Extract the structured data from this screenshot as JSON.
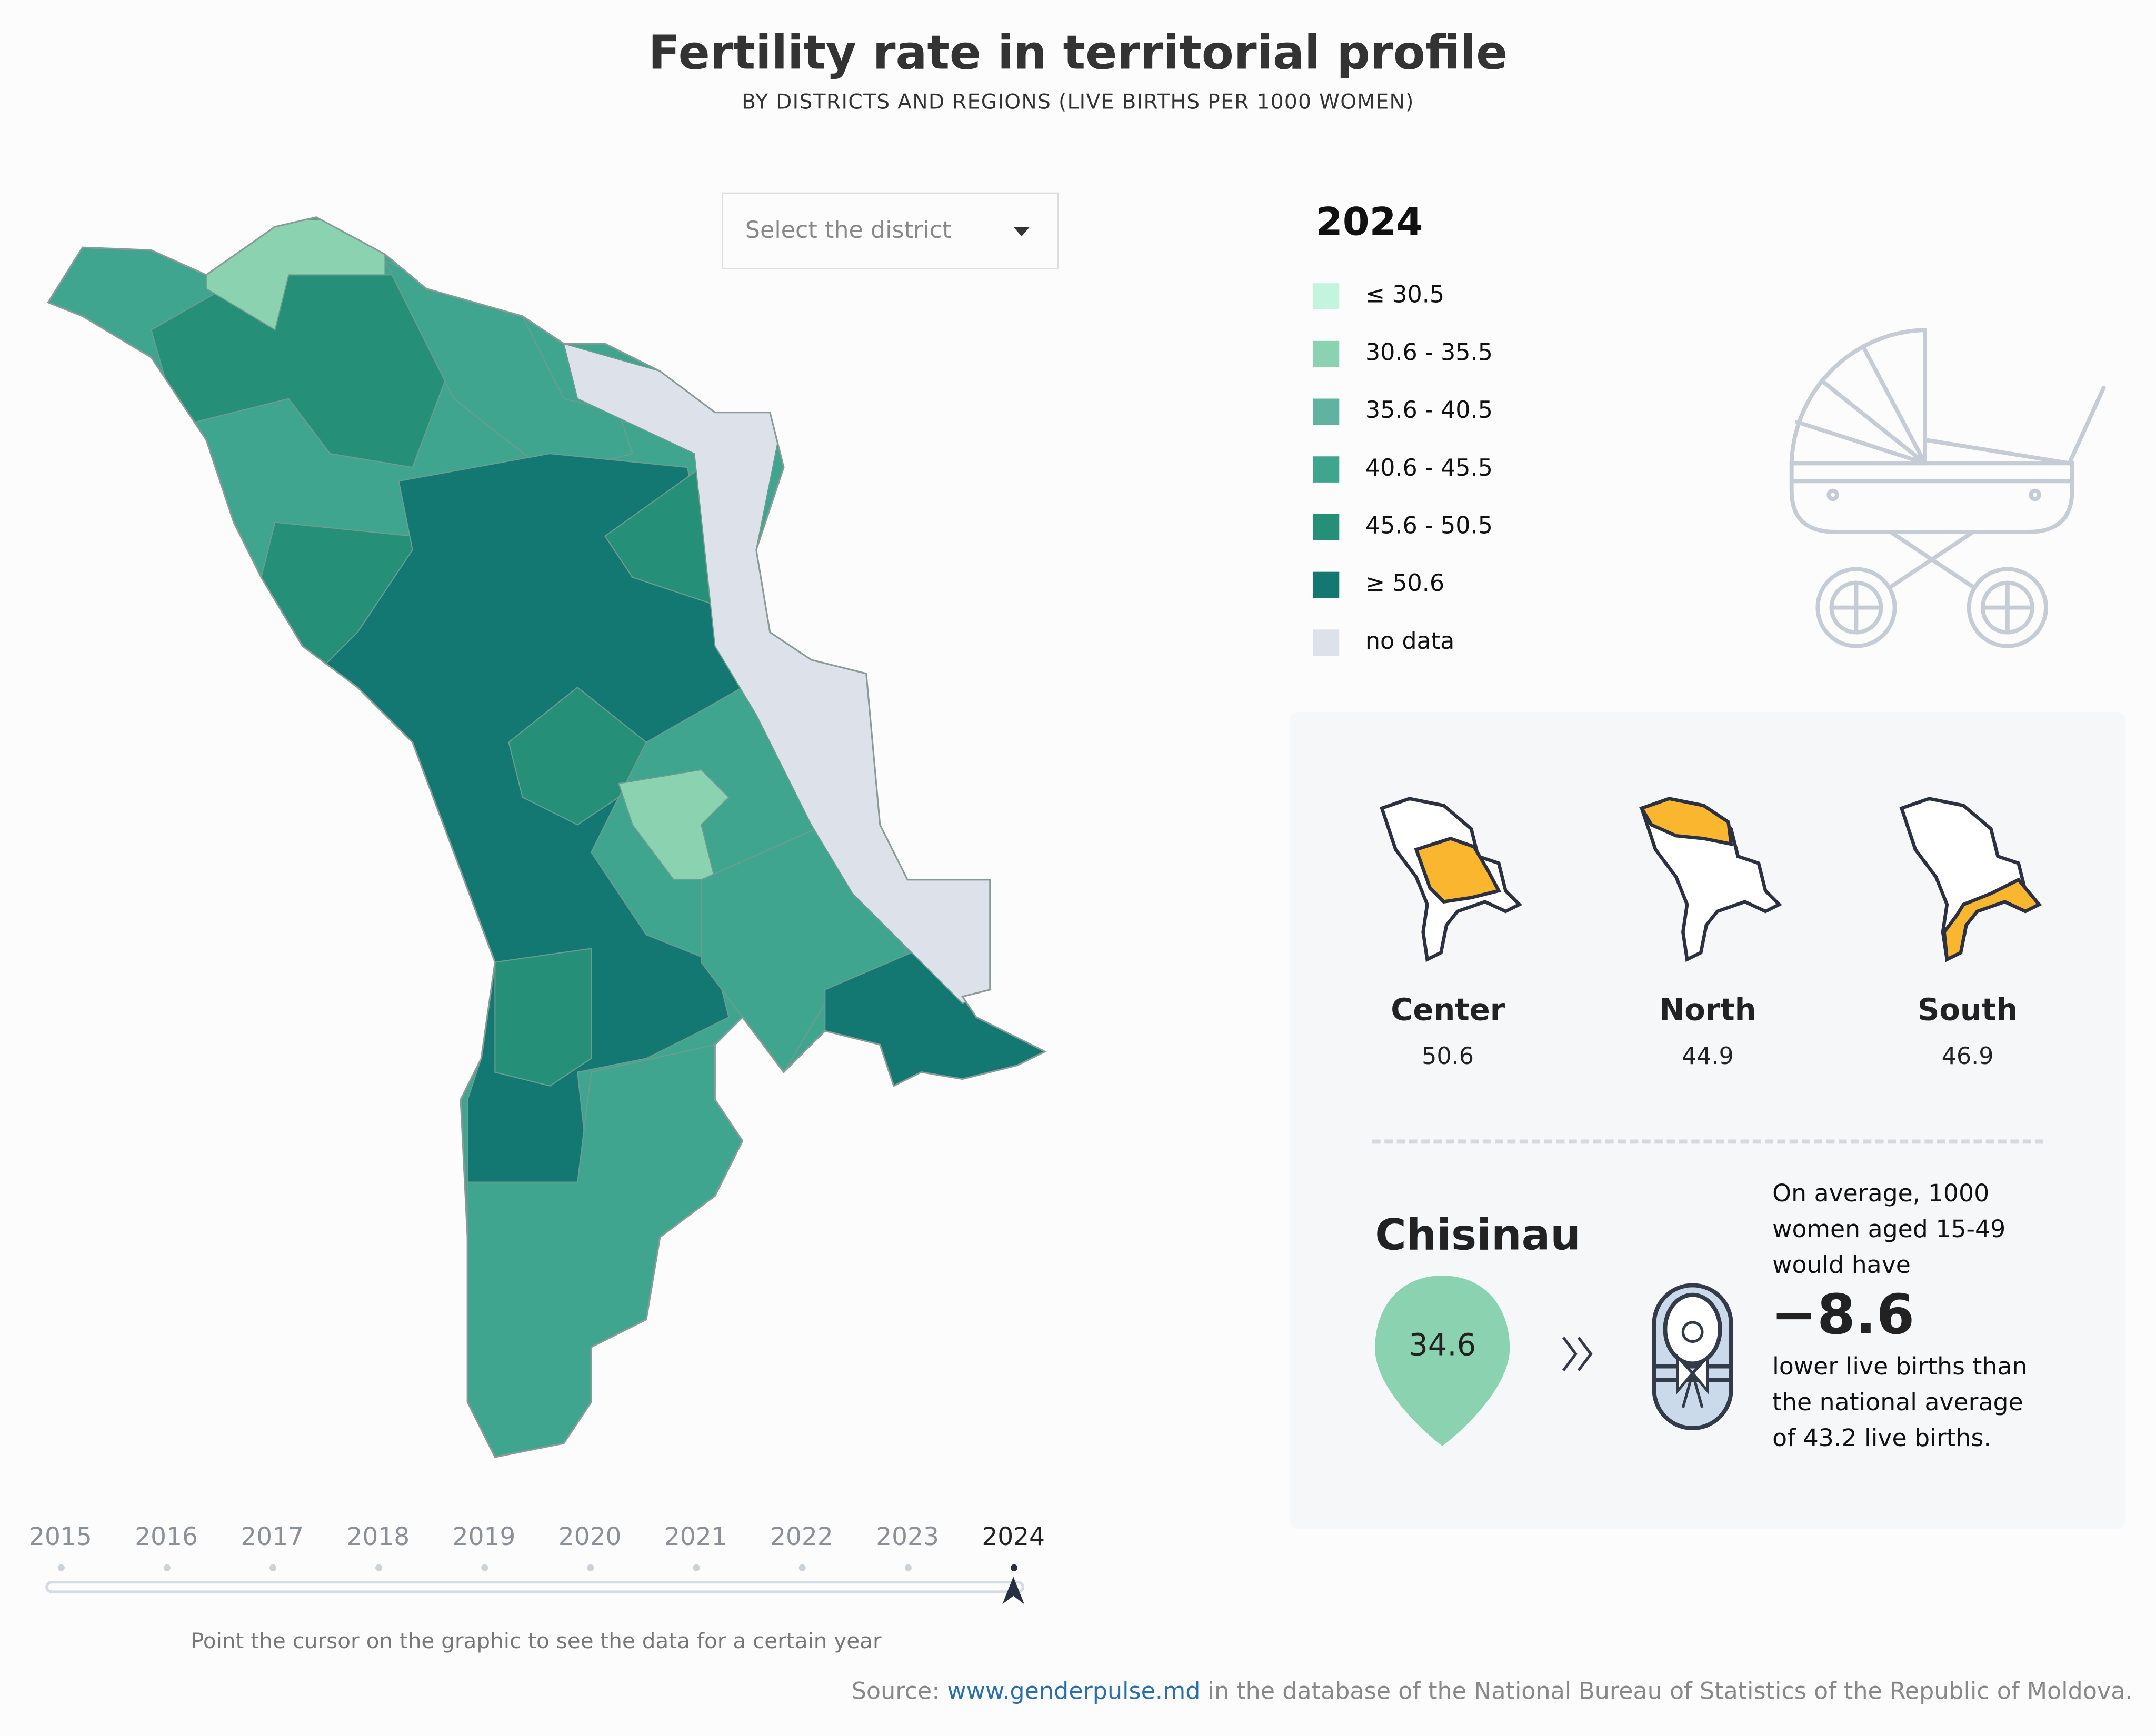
{
  "header": {
    "title": "Fertility rate in territorial profile",
    "subtitle": "BY DISTRICTS AND REGIONS (LIVE BIRTHS PER 1000 WOMEN)"
  },
  "district_select": {
    "placeholder": "Select the district"
  },
  "legend": {
    "year": "2024",
    "items": [
      {
        "label": "≤ 30.5",
        "color": "#c3f5de"
      },
      {
        "label": "30.6 - 35.5",
        "color": "#8bd3b0"
      },
      {
        "label": "35.6 - 40.5",
        "color": "#5fb3a0"
      },
      {
        "label": "40.6 - 45.5",
        "color": "#3fa58e"
      },
      {
        "label": "45.6 - 50.5",
        "color": "#258f78"
      },
      {
        "label": "≥ 50.6",
        "color": "#137872"
      },
      {
        "label": "no data",
        "color": "#dde1ea"
      }
    ]
  },
  "regions": [
    {
      "name": "Center",
      "value": "50.6"
    },
    {
      "name": "North",
      "value": "44.9"
    },
    {
      "name": "South",
      "value": "46.9"
    }
  ],
  "highlight_color": "#fbb630",
  "selected": {
    "name": "Chisinau",
    "value": "34.6",
    "line1": "On average, 1000",
    "line2": "women aged 15-49",
    "line3": "would have",
    "difference": "−8.6",
    "line4": "lower live births than",
    "line5": "the national average",
    "line6": "of 43.2 live births."
  },
  "timeline": {
    "years": [
      "2015",
      "2016",
      "2017",
      "2018",
      "2019",
      "2020",
      "2021",
      "2022",
      "2023",
      "2024"
    ],
    "selected": "2024",
    "hint": "Point the cursor on the graphic to see the data for a certain year"
  },
  "footer": {
    "source_prefix": "Source:",
    "source_link": "www.genderpulse.md",
    "source_suffix": " in the database of the National Bureau of Statistics of the Republic of Moldova."
  }
}
